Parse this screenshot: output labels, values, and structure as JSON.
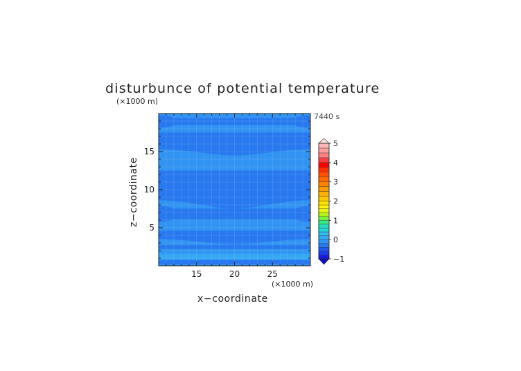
{
  "chart_data": {
    "type": "heatmap",
    "title": "disturbunce of potential temperature",
    "time_label": "7440 s",
    "xlabel": "x−coordinate",
    "ylabel": "z−coordinate",
    "x_unit": "(×1000 m)",
    "z_unit": "(×1000 m)",
    "xlim": [
      10,
      30
    ],
    "ylim": [
      0,
      20
    ],
    "x_ticks": [
      "15",
      "20",
      "25"
    ],
    "y_ticks": [
      "5",
      "10",
      "15"
    ],
    "colorbar": {
      "labels": [
        "−1",
        "0",
        "1",
        "2",
        "3",
        "4",
        "5"
      ],
      "bins": [
        {
          "range": [
            -1.0,
            -0.8
          ],
          "color": "#1a1ae6"
        },
        {
          "range": [
            -0.8,
            -0.6
          ],
          "color": "#1c3cf0"
        },
        {
          "range": [
            -0.6,
            -0.4
          ],
          "color": "#1e5af2"
        },
        {
          "range": [
            -0.4,
            -0.2
          ],
          "color": "#2878f0"
        },
        {
          "range": [
            -0.2,
            0.0
          ],
          "color": "#3194f2"
        },
        {
          "range": [
            0.0,
            0.2
          ],
          "color": "#34a8f4"
        },
        {
          "range": [
            0.2,
            0.4
          ],
          "color": "#2ebef0"
        },
        {
          "range": [
            0.4,
            0.6
          ],
          "color": "#25d2dc"
        },
        {
          "range": [
            0.6,
            0.8
          ],
          "color": "#24e0b8"
        },
        {
          "range": [
            0.8,
            1.0
          ],
          "color": "#39ea86"
        },
        {
          "range": [
            1.0,
            1.2
          ],
          "color": "#7cf040"
        },
        {
          "range": [
            1.2,
            1.4
          ],
          "color": "#b4f21e"
        },
        {
          "range": [
            1.4,
            1.6
          ],
          "color": "#e6f414"
        },
        {
          "range": [
            1.6,
            1.8
          ],
          "color": "#fff20c"
        },
        {
          "range": [
            1.8,
            2.0
          ],
          "color": "#ffe000"
        },
        {
          "range": [
            2.0,
            2.25
          ],
          "color": "#ffc800"
        },
        {
          "range": [
            2.25,
            2.5
          ],
          "color": "#ffb000"
        },
        {
          "range": [
            2.5,
            2.75
          ],
          "color": "#ff9a00"
        },
        {
          "range": [
            2.75,
            3.0
          ],
          "color": "#ff8200"
        },
        {
          "range": [
            3.0,
            3.25
          ],
          "color": "#ff6a00"
        },
        {
          "range": [
            3.25,
            3.5
          ],
          "color": "#ff5000"
        },
        {
          "range": [
            3.5,
            3.75
          ],
          "color": "#ff2e00"
        },
        {
          "range": [
            3.75,
            4.0
          ],
          "color": "#ff0000"
        },
        {
          "range": [
            4.0,
            4.25
          ],
          "color": "#ff4040"
        },
        {
          "range": [
            4.25,
            4.5
          ],
          "color": "#ff8080"
        },
        {
          "range": [
            4.5,
            4.75
          ],
          "color": "#ffa0a0"
        },
        {
          "range": [
            4.75,
            5.0
          ],
          "color": "#ffb8b8"
        }
      ],
      "under_color": "#1010c8",
      "over_color": "#fde0e0"
    },
    "field_colors": {
      "background": "#3194f2",
      "light": "#34a8f4",
      "dark": "#2878f0"
    },
    "regions": [
      {
        "level": "dark",
        "z": [
          0.2,
          0.8
        ]
      },
      {
        "level": "light",
        "z": [
          0.8,
          1.6
        ]
      },
      {
        "level": "dark",
        "z": [
          2.2,
          2.7
        ]
      },
      {
        "level": "dark",
        "z": [
          3.5,
          4.6
        ],
        "bulge": -0.7
      },
      {
        "level": "dark",
        "z": [
          6.1,
          7.5
        ],
        "edge_lobes": true
      },
      {
        "level": "dark",
        "z": [
          8.6,
          12.5
        ],
        "bulge": -1.1
      },
      {
        "level": "dark",
        "z": [
          15.3,
          17.5
        ],
        "bulge": -0.8
      },
      {
        "level": "dark",
        "z": [
          18.5,
          19.4
        ],
        "edge_lobes": true
      }
    ],
    "grid": true
  }
}
